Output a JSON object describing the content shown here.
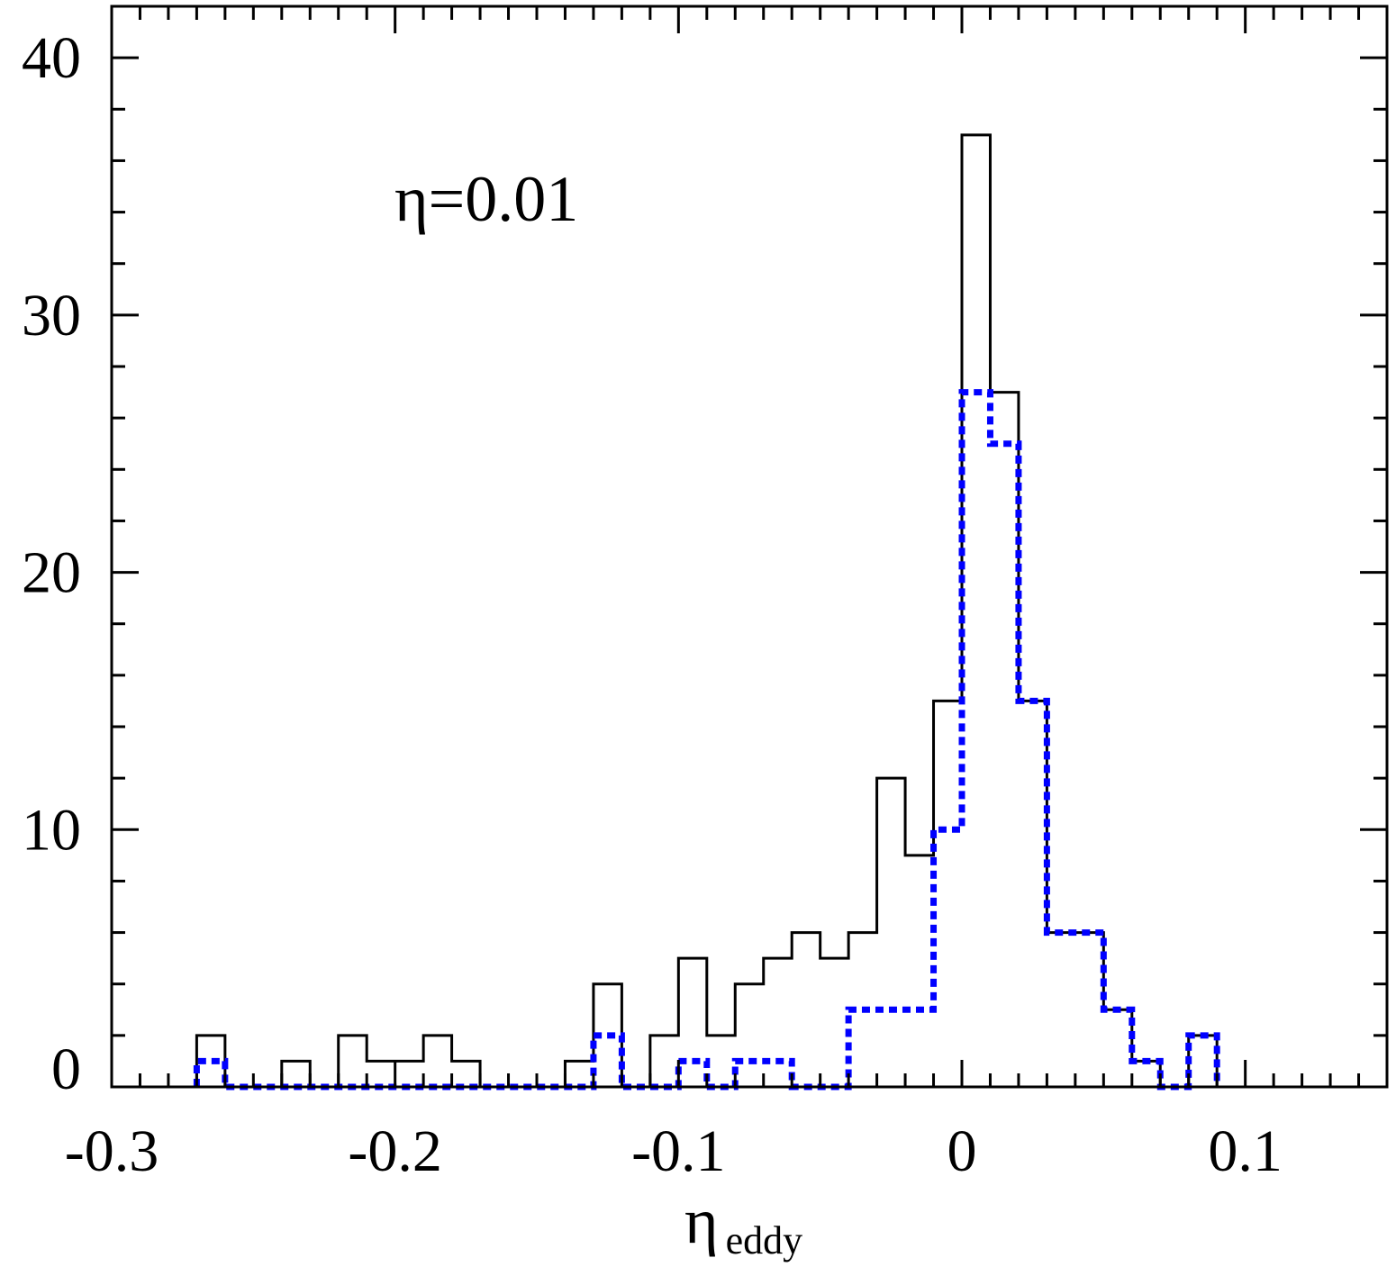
{
  "chart_data": {
    "type": "histogram",
    "annotation": "η=0.01",
    "xlabel": "η",
    "xlabel_subscript": "eddy",
    "ylabel": "",
    "xlim": [
      -0.3,
      0.15
    ],
    "ylim": [
      0,
      42
    ],
    "x_ticks": [
      "-0.3",
      "-0.2",
      "-0.1",
      "0",
      "0.1"
    ],
    "x_tick_values": [
      -0.3,
      -0.2,
      -0.1,
      0,
      0.1
    ],
    "y_ticks": [
      "0",
      "10",
      "20",
      "30",
      "40"
    ],
    "y_tick_values": [
      0,
      10,
      20,
      30,
      40
    ],
    "bin_edges": [
      -0.27,
      -0.26,
      -0.25,
      -0.24,
      -0.23,
      -0.22,
      -0.21,
      -0.2,
      -0.19,
      -0.18,
      -0.17,
      -0.16,
      -0.15,
      -0.14,
      -0.13,
      -0.12,
      -0.11,
      -0.1,
      -0.09,
      -0.08,
      -0.07,
      -0.06,
      -0.05,
      -0.04,
      -0.03,
      -0.02,
      -0.01,
      0.0,
      0.01,
      0.02,
      0.03,
      0.04,
      0.05,
      0.06,
      0.07,
      0.08,
      0.09
    ],
    "series": [
      {
        "style": "solid",
        "color": "#000000",
        "counts": [
          2,
          0,
          0,
          1,
          0,
          2,
          1,
          1,
          2,
          1,
          0,
          0,
          0,
          1,
          4,
          0,
          2,
          5,
          2,
          4,
          5,
          6,
          5,
          6,
          12,
          9,
          15,
          37,
          27,
          15,
          6,
          6,
          3,
          1,
          0,
          2
        ]
      },
      {
        "style": "dotted",
        "color": "#0000ff",
        "counts": [
          1,
          0,
          0,
          0,
          0,
          0,
          0,
          0,
          0,
          0,
          0,
          0,
          0,
          0,
          2,
          0,
          0,
          1,
          0,
          1,
          1,
          0,
          0,
          3,
          3,
          3,
          10,
          27,
          25,
          15,
          6,
          6,
          3,
          1,
          0,
          2
        ]
      }
    ]
  }
}
